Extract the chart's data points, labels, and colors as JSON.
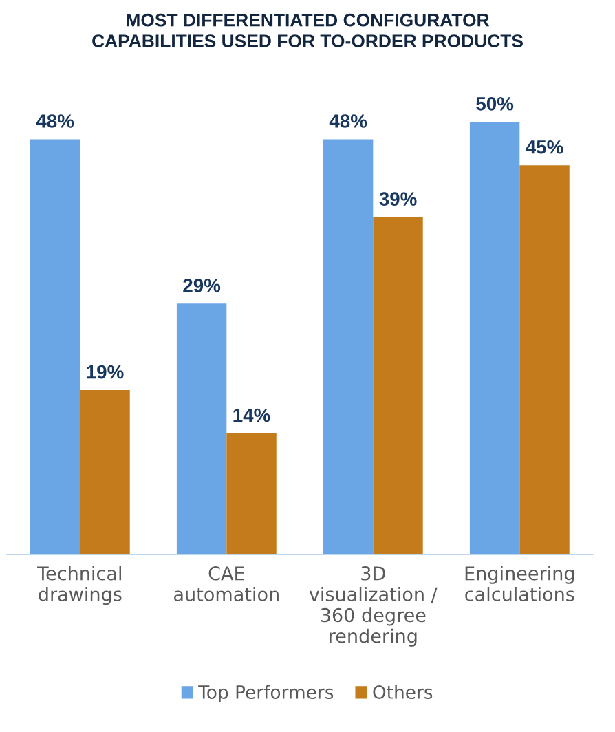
{
  "chart_data": {
    "type": "bar",
    "title": "MOST DIFFERENTIATED CONFIGURATOR CAPABILITIES USED FOR TO-ORDER PRODUCTS",
    "categories": [
      "Technical drawings",
      "CAE automation",
      "3D visualization / 360 degree rendering",
      "Engineering calculations"
    ],
    "series": [
      {
        "name": "Top Performers",
        "color": "#6aa6e6",
        "values": [
          48,
          29,
          48,
          50
        ],
        "value_labels": [
          "48%",
          "29%",
          "48%",
          "50%"
        ]
      },
      {
        "name": "Others",
        "color": "#c47b1c",
        "values": [
          19,
          14,
          39,
          45
        ],
        "value_labels": [
          "19%",
          "14%",
          "39%",
          "45%"
        ]
      }
    ],
    "legend": "bottom",
    "grid": false
  }
}
